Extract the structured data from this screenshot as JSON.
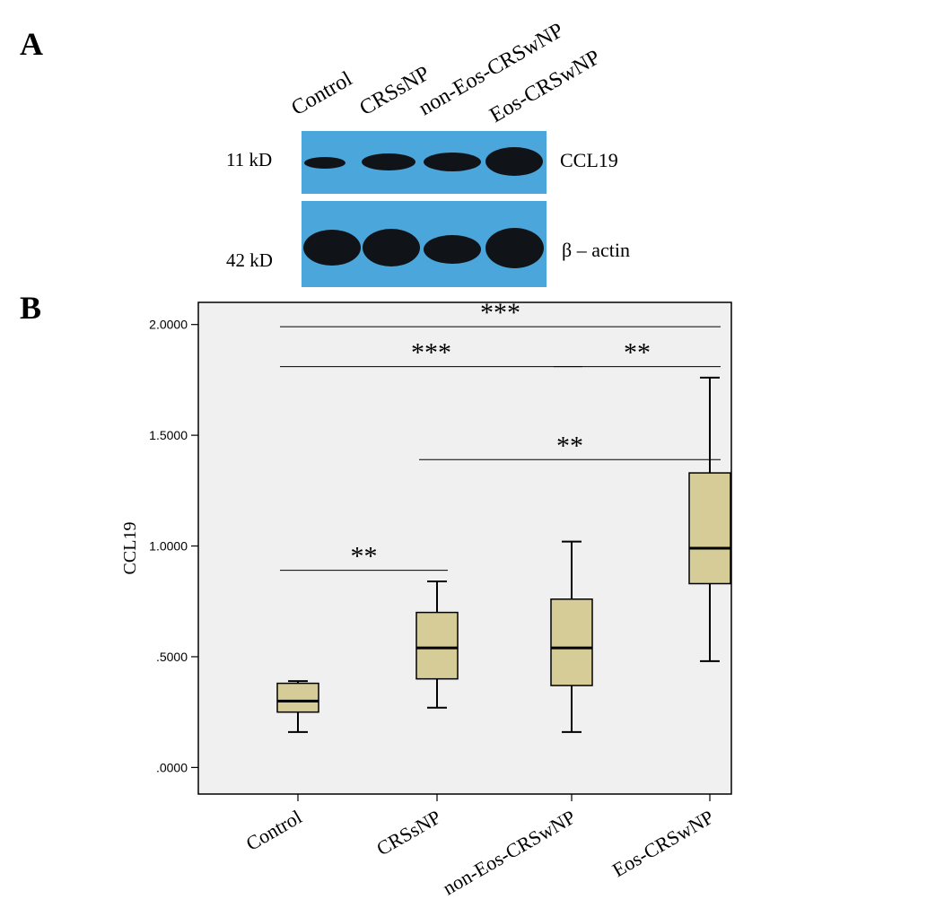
{
  "panels": {
    "a": "A",
    "b": "B"
  },
  "blot": {
    "lanes": [
      "Control",
      "CRSsNP",
      "non-Eos-CRSwNP",
      "Eos-CRSwNP"
    ],
    "rows": [
      {
        "kd": "11 kD",
        "protein": "CCL19",
        "band_intensity": [
          0.45,
          0.65,
          0.7,
          1.0
        ]
      },
      {
        "kd": "42 kD",
        "protein": "β – actin",
        "band_intensity": [
          1.0,
          1.0,
          0.85,
          1.0
        ]
      }
    ],
    "colors": {
      "membrane": "#4aa6db",
      "band": "#101418"
    }
  },
  "chart_data": {
    "type": "boxplot",
    "ylabel": "CCL19",
    "ylim": [
      -0.12,
      2.1
    ],
    "yticks": [
      0.0,
      0.5,
      1.0,
      1.5,
      2.0
    ],
    "ytick_labels": [
      ".0000",
      ".5000",
      "1.0000",
      "1.5000",
      "2.0000"
    ],
    "categories": [
      "Control",
      "CRSsNP",
      "non-Eos-CRSwNP",
      "Eos-CRSwNP"
    ],
    "boxes": [
      {
        "min": 0.16,
        "q1": 0.25,
        "median": 0.3,
        "q3": 0.38,
        "max": 0.39
      },
      {
        "min": 0.27,
        "q1": 0.4,
        "median": 0.54,
        "q3": 0.7,
        "max": 0.84
      },
      {
        "min": 0.16,
        "q1": 0.37,
        "median": 0.54,
        "q3": 0.76,
        "max": 1.02
      },
      {
        "min": 0.48,
        "q1": 0.83,
        "median": 0.99,
        "q3": 1.33,
        "max": 1.76
      }
    ],
    "significance": [
      {
        "from": 0,
        "to": 3,
        "y": 1.99,
        "label": "***"
      },
      {
        "from": 0,
        "to": 2,
        "y": 1.81,
        "label": "***"
      },
      {
        "from": 2,
        "to": 3,
        "y": 1.81,
        "label": "**"
      },
      {
        "from": 1,
        "to": 3,
        "y": 1.39,
        "label": "**"
      },
      {
        "from": 0,
        "to": 1,
        "y": 0.89,
        "label": "**"
      }
    ],
    "colors": {
      "box_fill": "#d5cc98",
      "plot_bg": "#f0f0f0",
      "stroke": "#000000"
    }
  }
}
